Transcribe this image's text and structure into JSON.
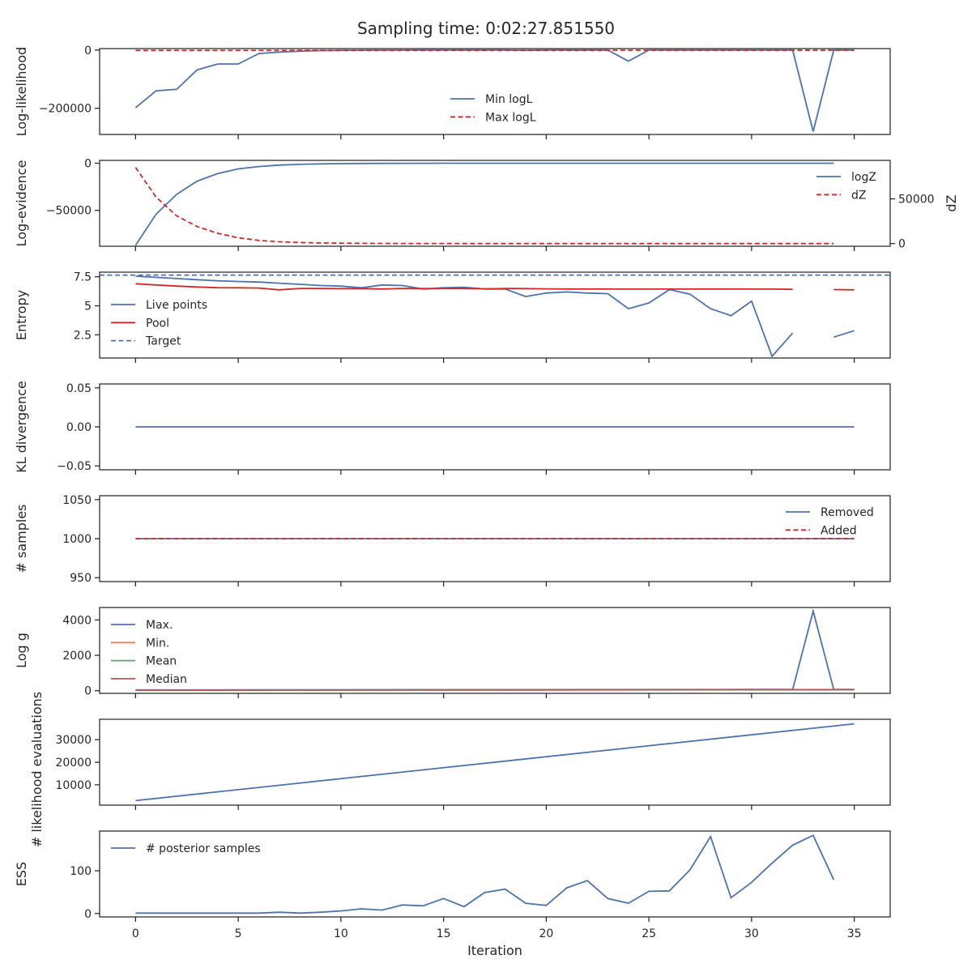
{
  "figure": {
    "title": "Sampling time: 0:02:27.851550",
    "xlabel": "Iteration"
  },
  "colors": {
    "blue": "#4c72b0",
    "red": "#d62728",
    "orange": "#dd8452",
    "green": "#55a868",
    "crimson": "#c44e52",
    "axis": "#262626"
  },
  "chart_data": [
    {
      "type": "line",
      "ylabel": "Log-likelihood",
      "ylim": [
        -290000,
        5000
      ],
      "yticks": [
        0,
        -200000
      ],
      "xlim": [
        -1.75,
        36.75
      ],
      "xticks": [
        0,
        5,
        10,
        15,
        20,
        25,
        30,
        35
      ],
      "legend": "center",
      "series": [
        {
          "name": "Min logL",
          "color": "#4c72b0",
          "style": "solid",
          "x": [
            0,
            1,
            2,
            3,
            4,
            5,
            6,
            7,
            8,
            9,
            10,
            11,
            12,
            13,
            14,
            15,
            16,
            17,
            18,
            19,
            20,
            21,
            22,
            23,
            24,
            25,
            26,
            27,
            28,
            29,
            30,
            31,
            32,
            33,
            34,
            35
          ],
          "y": [
            -198000,
            -140000,
            -135000,
            -68000,
            -48000,
            -48000,
            -12000,
            -7000,
            -4000,
            -2000,
            -1000,
            -500,
            -300,
            -200,
            -100,
            -100,
            -100,
            -100,
            -100,
            -1000,
            -100,
            -100,
            -100,
            -100,
            -38000,
            -100,
            -100,
            -100,
            -100,
            -100,
            -100,
            -100,
            -100,
            -280000,
            -100,
            -100
          ]
        },
        {
          "name": "Max logL",
          "color": "#d62728",
          "style": "dashed",
          "x": [
            0,
            35
          ],
          "y": [
            -1500,
            -200
          ]
        }
      ]
    },
    {
      "type": "line",
      "ylabel": "Log-evidence",
      "ylabel_right": "dZ",
      "ylim": [
        -88000,
        3000
      ],
      "yticks": [
        0,
        -50000
      ],
      "ylim_right": [
        -3000,
        93000
      ],
      "yticks_right": [
        0,
        50000
      ],
      "xlim": [
        -1.75,
        36.75
      ],
      "xticks": [
        0,
        5,
        10,
        15,
        20,
        25,
        30,
        35
      ],
      "legend": "upper right",
      "series": [
        {
          "name": "logZ",
          "color": "#4c72b0",
          "style": "solid",
          "axis": "left",
          "x": [
            0,
            1,
            2,
            3,
            4,
            5,
            6,
            7,
            8,
            9,
            10,
            11,
            12,
            13,
            14,
            15,
            16,
            17,
            18,
            19,
            20,
            21,
            22,
            23,
            24,
            25,
            26,
            27,
            28,
            29,
            30,
            31,
            32,
            33,
            34
          ],
          "y": [
            -87000,
            -54000,
            -33000,
            -19000,
            -11000,
            -6000,
            -3500,
            -2000,
            -1200,
            -700,
            -400,
            -250,
            -150,
            -100,
            -60,
            -40,
            -30,
            -20,
            -15,
            -10,
            -8,
            -6,
            -5,
            -4,
            -3,
            -2,
            -2,
            -1,
            -1,
            -1,
            -1,
            -1,
            -1,
            -1,
            -1
          ]
        },
        {
          "name": "dZ",
          "color": "#d62728",
          "style": "dashed",
          "axis": "right",
          "x": [
            0,
            1,
            2,
            3,
            4,
            5,
            6,
            7,
            8,
            9,
            10,
            11,
            12,
            13,
            14,
            15,
            16,
            17,
            18,
            19,
            20,
            21,
            22,
            23,
            24,
            25,
            26,
            27,
            28,
            29,
            30,
            31,
            32,
            33,
            34
          ],
          "y": [
            85000,
            52000,
            31000,
            19000,
            11500,
            6500,
            3500,
            2000,
            1200,
            700,
            400,
            250,
            150,
            100,
            60,
            40,
            30,
            20,
            15,
            10,
            8,
            6,
            5,
            4,
            3,
            2,
            2,
            1,
            1,
            1,
            1,
            1,
            1,
            1,
            1
          ]
        }
      ]
    },
    {
      "type": "line",
      "ylabel": "Entropy",
      "ylim": [
        0.5,
        7.9
      ],
      "yticks": [
        7.5,
        5.0,
        2.5
      ],
      "xlim": [
        -1.75,
        36.75
      ],
      "xticks": [
        0,
        5,
        10,
        15,
        20,
        25,
        30,
        35
      ],
      "legend": "center left",
      "series": [
        {
          "name": "Live points",
          "color": "#4c72b0",
          "style": "solid",
          "x": [
            0,
            1,
            2,
            3,
            4,
            5,
            6,
            7,
            8,
            9,
            10,
            11,
            12,
            13,
            14,
            15,
            16,
            17,
            18,
            19,
            20,
            21,
            22,
            23,
            24,
            25,
            26,
            27,
            28,
            29,
            30,
            31,
            32,
            null,
            34,
            35
          ],
          "y": [
            7.55,
            7.45,
            7.35,
            7.25,
            7.15,
            7.1,
            7.05,
            6.95,
            6.85,
            6.75,
            6.7,
            6.55,
            6.8,
            6.75,
            6.45,
            6.55,
            6.6,
            6.45,
            6.45,
            5.8,
            6.1,
            6.2,
            6.1,
            6.05,
            4.75,
            5.25,
            6.4,
            6.0,
            4.75,
            4.15,
            5.4,
            0.65,
            2.65,
            null,
            2.3,
            2.85
          ]
        },
        {
          "name": "Pool",
          "color": "#d62728",
          "style": "solid",
          "x": [
            0,
            1,
            2,
            3,
            4,
            5,
            6,
            7,
            8,
            9,
            10,
            11,
            12,
            13,
            14,
            15,
            16,
            17,
            18,
            19,
            20,
            21,
            22,
            23,
            24,
            25,
            26,
            27,
            28,
            29,
            30,
            31,
            32,
            null,
            34,
            35
          ],
          "y": [
            6.9,
            6.8,
            6.7,
            6.62,
            6.56,
            6.55,
            6.53,
            6.38,
            6.5,
            6.5,
            6.48,
            6.48,
            6.45,
            6.5,
            6.48,
            6.5,
            6.5,
            6.46,
            6.5,
            6.48,
            6.46,
            6.45,
            6.45,
            6.45,
            6.44,
            6.44,
            6.44,
            6.45,
            6.45,
            6.45,
            6.44,
            6.44,
            6.42,
            null,
            6.4,
            6.38
          ]
        },
        {
          "name": "Target",
          "color": "#4c72b0",
          "style": "dashed",
          "x": [
            -1.75,
            36.75
          ],
          "y": [
            7.65,
            7.65
          ]
        }
      ]
    },
    {
      "type": "line",
      "ylabel": "KL divergence",
      "ylim": [
        -0.055,
        0.055
      ],
      "yticks": [
        0.05,
        0.0,
        -0.05
      ],
      "yticklabels": [
        "0.05",
        "0.00",
        "−0.05"
      ],
      "xlim": [
        -1.75,
        36.75
      ],
      "xticks": [
        0,
        5,
        10,
        15,
        20,
        25,
        30,
        35
      ],
      "series": [
        {
          "name": "",
          "color": "#4c72b0",
          "style": "solid",
          "x": [
            0,
            35
          ],
          "y": [
            0,
            0
          ]
        }
      ]
    },
    {
      "type": "line",
      "ylabel": "# samples",
      "ylim": [
        945,
        1055
      ],
      "yticks": [
        1050,
        1000,
        950
      ],
      "xlim": [
        -1.75,
        36.75
      ],
      "xticks": [
        0,
        5,
        10,
        15,
        20,
        25,
        30,
        35
      ],
      "legend": "upper right",
      "series": [
        {
          "name": "Removed",
          "color": "#4c72b0",
          "style": "solid",
          "x": [
            0,
            35
          ],
          "y": [
            1000,
            1000
          ]
        },
        {
          "name": "Added",
          "color": "#d62728",
          "style": "dashed",
          "x": [
            0,
            35
          ],
          "y": [
            1000,
            1000
          ]
        }
      ]
    },
    {
      "type": "line",
      "ylabel": "Log g",
      "ylim": [
        -150,
        4700
      ],
      "yticks": [
        4000,
        2000,
        0
      ],
      "xlim": [
        -1.75,
        36.75
      ],
      "xticks": [
        0,
        5,
        10,
        15,
        20,
        25,
        30,
        35
      ],
      "legend": "upper left",
      "series": [
        {
          "name": "Max.",
          "color": "#4c72b0",
          "style": "solid",
          "x": [
            0,
            5,
            10,
            15,
            20,
            25,
            30,
            32,
            33,
            34,
            35
          ],
          "y": [
            40,
            45,
            50,
            55,
            60,
            65,
            70,
            70,
            4500,
            70,
            75
          ]
        },
        {
          "name": "Min.",
          "color": "#dd8452",
          "style": "solid",
          "x": [
            0,
            35
          ],
          "y": [
            30,
            55
          ]
        },
        {
          "name": "Mean",
          "color": "#55a868",
          "style": "solid",
          "x": [
            0,
            35
          ],
          "y": [
            35,
            60
          ]
        },
        {
          "name": "Median",
          "color": "#c44e52",
          "style": "solid",
          "x": [
            0,
            35
          ],
          "y": [
            35,
            62
          ]
        }
      ]
    },
    {
      "type": "line",
      "ylabel": "# likelihood evaluations",
      "ylim": [
        1000,
        39000
      ],
      "yticks": [
        30000,
        20000,
        10000
      ],
      "xlim": [
        -1.75,
        36.75
      ],
      "xticks": [
        0,
        5,
        10,
        15,
        20,
        25,
        30,
        35
      ],
      "series": [
        {
          "name": "",
          "color": "#4c72b0",
          "style": "solid",
          "x": [
            0,
            35
          ],
          "y": [
            3000,
            37000
          ]
        }
      ]
    },
    {
      "type": "line",
      "ylabel": "ESS",
      "ylim": [
        -8,
        193
      ],
      "yticks": [
        100,
        0
      ],
      "xlim": [
        -1.75,
        36.75
      ],
      "xticks": [
        0,
        5,
        10,
        15,
        20,
        25,
        30,
        35
      ],
      "xticklabels": [
        "0",
        "5",
        "10",
        "15",
        "20",
        "25",
        "30",
        "35"
      ],
      "legend": "upper left",
      "series": [
        {
          "name": "# posterior samples",
          "color": "#4c72b0",
          "style": "solid",
          "x": [
            0,
            1,
            2,
            3,
            4,
            5,
            6,
            7,
            8,
            9,
            10,
            11,
            12,
            13,
            14,
            15,
            16,
            17,
            18,
            19,
            20,
            21,
            22,
            23,
            24,
            25,
            26,
            27,
            28,
            29,
            30,
            31,
            32,
            33,
            34
          ],
          "y": [
            1,
            1,
            1,
            1,
            1,
            1,
            1,
            3,
            1,
            3,
            6,
            11,
            8,
            20,
            18,
            35,
            16,
            49,
            57,
            24,
            19,
            60,
            77,
            35,
            24,
            52,
            53,
            102,
            180,
            37,
            73,
            118,
            160,
            183,
            79
          ]
        }
      ]
    }
  ]
}
